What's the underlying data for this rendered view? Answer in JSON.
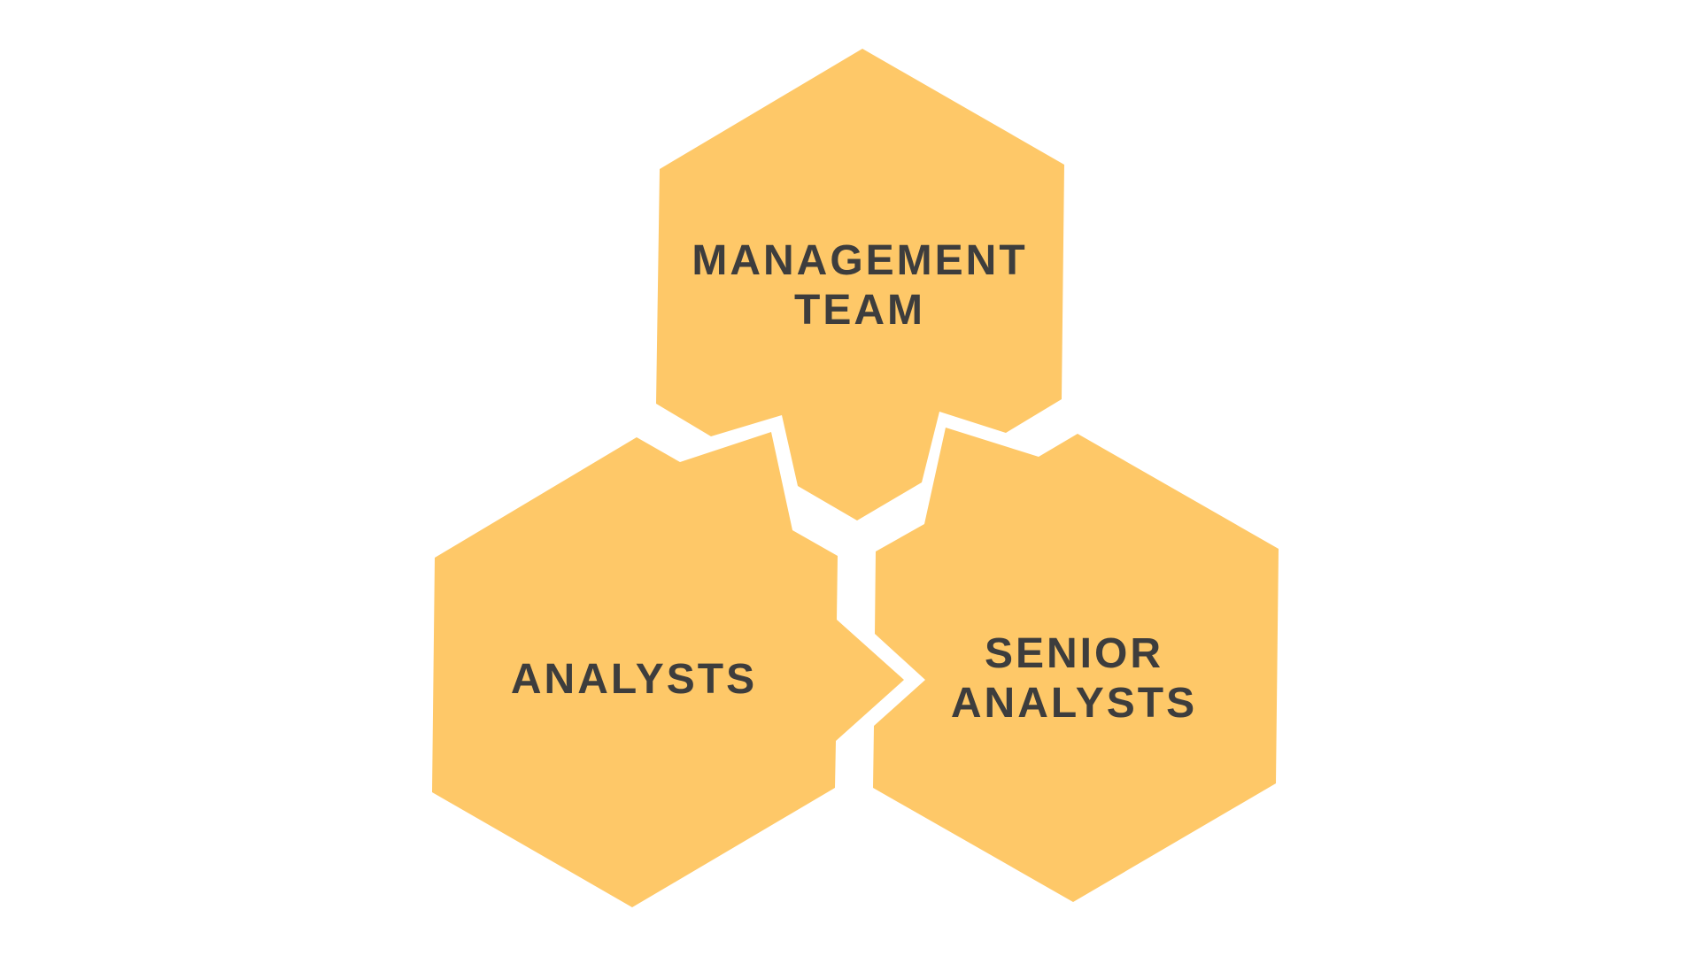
{
  "diagram": {
    "fill_color": "#FEC868",
    "text_color": "#3d3d3d",
    "background": "#ffffff",
    "nodes": [
      {
        "id": "management-team",
        "lines": [
          "MANAGEMENT",
          "TEAM"
        ]
      },
      {
        "id": "analysts",
        "lines": [
          "ANALYSTS"
        ]
      },
      {
        "id": "senior-analysts",
        "lines": [
          "SENIOR",
          "ANALYSTS"
        ]
      }
    ]
  }
}
